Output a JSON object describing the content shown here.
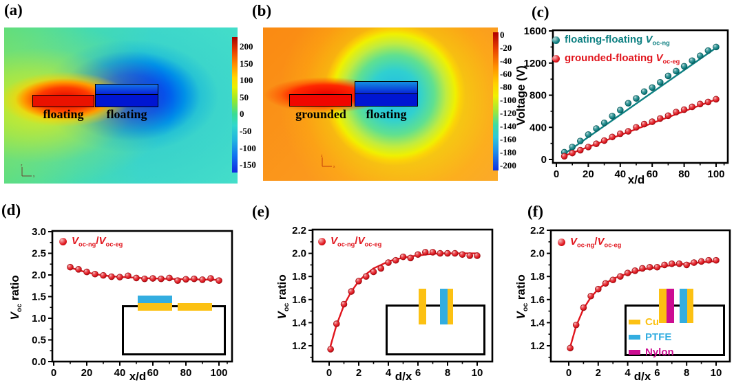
{
  "panel_a": {
    "label": "(a)",
    "left_electrode": "floating",
    "right_electrode": "floating",
    "colorbar_ticks": [
      "200",
      "150",
      "100",
      "50",
      "0",
      "-50",
      "-100",
      "-150"
    ],
    "axis_glyph": {
      "v": "z",
      "h": "x"
    }
  },
  "panel_b": {
    "label": "(b)",
    "left_electrode": "grounded",
    "right_electrode": "floating",
    "colorbar_ticks": [
      "0",
      "-20",
      "-40",
      "-60",
      "-80",
      "-100",
      "-120",
      "-140",
      "-160",
      "-180",
      "-200"
    ],
    "axis_glyph": {
      "v": "z",
      "h": "x"
    }
  },
  "colors": {
    "teal": "#0e8082",
    "red": "#e1151d",
    "cu_yellow": "#fcc113",
    "ptfe_cyan": "#33ade0",
    "nylon_magenta": "#cc0d92"
  },
  "insets": {
    "d": {
      "description": "planar electrodes: PTFE on Cu (left) and bare Cu (right) on open box"
    },
    "e": {
      "description": "vertical electrodes: bare Cu (left), PTFE on Cu (right) above open box"
    },
    "f": {
      "legend": [
        {
          "label": "Cu",
          "color": "#fcc113"
        },
        {
          "label": "PTFE",
          "color": "#33ade0"
        },
        {
          "label": "Nylon",
          "color": "#cc0d92"
        }
      ]
    }
  },
  "chart_data": [
    {
      "id": "c",
      "panel_label": "(c)",
      "type": "scatter",
      "xlabel": [
        {
          "t": "x/d",
          "s": "plain"
        }
      ],
      "ylabel": [
        {
          "t": "Voltage (V)",
          "s": "plain"
        }
      ],
      "xlim": [
        0,
        107
      ],
      "ylim": [
        0,
        1700
      ],
      "xtick_vals": [
        0,
        20,
        40,
        60,
        80,
        100
      ],
      "xtick_labels": [
        "0",
        "20",
        "40",
        "60",
        "80",
        "100"
      ],
      "xminor": [
        10,
        30,
        50,
        70,
        90,
        105
      ],
      "ytick_vals": [
        0,
        400,
        800,
        1200,
        1600
      ],
      "ytick_labels": [
        "0",
        "400",
        "800",
        "1200",
        "1600"
      ],
      "yminor": [
        200,
        600,
        1000,
        1400
      ],
      "legend_position": "top-left",
      "series": [
        {
          "name": "floating-floating Voc-ng",
          "label_segments": [
            {
              "t": "floating-floating ",
              "s": "plain"
            },
            {
              "t": "V",
              "s": "ivar"
            },
            {
              "t": "oc-ng",
              "s": "sub"
            }
          ],
          "color": "#0e8082",
          "x": [
            5,
            10,
            15,
            20,
            25,
            30,
            35,
            40,
            45,
            50,
            55,
            60,
            65,
            70,
            75,
            80,
            85,
            90,
            95,
            100
          ],
          "y": [
            90,
            155,
            230,
            310,
            385,
            455,
            540,
            615,
            700,
            760,
            845,
            895,
            960,
            1040,
            1100,
            1160,
            1230,
            1290,
            1355,
            1400
          ],
          "fit_x": [
            5,
            100
          ],
          "fit_y": [
            70,
            1390
          ]
        },
        {
          "name": "grounded-floating Voc-eg",
          "label_segments": [
            {
              "t": "grounded-floating ",
              "s": "plain"
            },
            {
              "t": "V",
              "s": "ivar"
            },
            {
              "t": "oc-eg",
              "s": "sub"
            }
          ],
          "color": "#e1151d",
          "x": [
            5,
            10,
            15,
            20,
            25,
            30,
            35,
            40,
            45,
            50,
            55,
            60,
            65,
            70,
            75,
            80,
            85,
            90,
            95,
            100
          ],
          "y": [
            40,
            80,
            115,
            155,
            195,
            235,
            280,
            320,
            350,
            400,
            440,
            470,
            510,
            545,
            590,
            620,
            655,
            690,
            715,
            750
          ],
          "fit_x": [
            5,
            100
          ],
          "fit_y": [
            45,
            748
          ]
        }
      ]
    },
    {
      "id": "d",
      "panel_label": "(d)",
      "type": "scatter",
      "xlabel": [
        {
          "t": "x/d",
          "s": "plain"
        }
      ],
      "ylabel": [
        {
          "t": "V",
          "s": "ivar"
        },
        {
          "t": "oc",
          "s": "sub"
        },
        {
          "t": " ratio",
          "s": "plain"
        }
      ],
      "xlim": [
        0,
        108
      ],
      "ylim": [
        0,
        3.0
      ],
      "xtick_vals": [
        0,
        20,
        40,
        60,
        80,
        100
      ],
      "xtick_labels": [
        "0",
        "20",
        "40",
        "60",
        "80",
        "100"
      ],
      "xminor": [
        10,
        30,
        50,
        70,
        90,
        105
      ],
      "ytick_vals": [
        0,
        0.5,
        1,
        1.5,
        2,
        2.5,
        3
      ],
      "ytick_labels": [
        "0.0",
        "0.5",
        "1.0",
        "1.5",
        "2.0",
        "2.5",
        "3.0"
      ],
      "yminor": [
        0.25,
        0.75,
        1.25,
        1.75,
        2.25,
        2.75
      ],
      "legend_position": "top-left",
      "series": [
        {
          "name": "Voc-ng/Voc-eg",
          "label_segments": [
            {
              "t": "V",
              "s": "ivar"
            },
            {
              "t": "oc-ng",
              "s": "sub"
            },
            {
              "t": "/",
              "s": "plain"
            },
            {
              "t": "V",
              "s": "ivar"
            },
            {
              "t": "oc-eg",
              "s": "sub"
            }
          ],
          "color": "#e1151d",
          "x": [
            10,
            15,
            20,
            25,
            30,
            35,
            40,
            45,
            50,
            55,
            60,
            65,
            70,
            75,
            80,
            85,
            90,
            95,
            100
          ],
          "y": [
            2.18,
            2.13,
            2.07,
            2.02,
            1.99,
            1.96,
            1.95,
            1.98,
            1.93,
            1.91,
            1.92,
            1.91,
            1.93,
            1.87,
            1.9,
            1.91,
            1.89,
            1.92,
            1.87
          ],
          "fit_x": [
            10,
            15,
            20,
            25,
            30,
            35,
            40,
            45,
            50,
            55,
            60,
            65,
            70,
            75,
            80,
            85,
            90,
            95,
            100
          ],
          "fit_y": [
            2.17,
            2.11,
            2.06,
            2.02,
            1.99,
            1.97,
            1.955,
            1.945,
            1.935,
            1.925,
            1.92,
            1.915,
            1.91,
            1.905,
            1.9,
            1.897,
            1.894,
            1.891,
            1.888
          ]
        }
      ]
    },
    {
      "id": "e",
      "panel_label": "(e)",
      "type": "scatter",
      "xlabel": [
        {
          "t": "d/x",
          "s": "plain"
        }
      ],
      "ylabel": [
        {
          "t": "V",
          "s": "ivar"
        },
        {
          "t": "oc",
          "s": "sub"
        },
        {
          "t": " ratio",
          "s": "plain"
        }
      ],
      "xlim": [
        -1,
        11
      ],
      "ylim": [
        1.06,
        2.2
      ],
      "xtick_vals": [
        0,
        2,
        4,
        6,
        8,
        10
      ],
      "xtick_labels": [
        "0",
        "2",
        "4",
        "6",
        "8",
        "10"
      ],
      "xminor": [
        1,
        3,
        5,
        7,
        9
      ],
      "ytick_vals": [
        1.2,
        1.4,
        1.6,
        1.8,
        2.0,
        2.2
      ],
      "ytick_labels": [
        "1.2",
        "1.4",
        "1.6",
        "1.8",
        "2.0",
        "2.2"
      ],
      "yminor": [
        1.1,
        1.3,
        1.5,
        1.7,
        1.9,
        2.1
      ],
      "legend_position": "top-left",
      "series": [
        {
          "name": "Voc-ng/Voc-eg",
          "label_segments": [
            {
              "t": "V",
              "s": "ivar"
            },
            {
              "t": "oc-ng",
              "s": "sub"
            },
            {
              "t": "/",
              "s": "plain"
            },
            {
              "t": "V",
              "s": "ivar"
            },
            {
              "t": "oc-eg",
              "s": "sub"
            }
          ],
          "color": "#e1151d",
          "x": [
            0.1,
            0.5,
            1,
            1.5,
            2,
            2.5,
            3,
            3.5,
            4,
            4.5,
            5,
            5.5,
            6,
            6.5,
            7,
            7.5,
            8,
            8.5,
            9,
            9.5,
            10
          ],
          "y": [
            1.17,
            1.39,
            1.56,
            1.67,
            1.76,
            1.8,
            1.84,
            1.87,
            1.92,
            1.94,
            1.97,
            1.96,
            1.99,
            2.01,
            2.01,
            2.0,
            2.0,
            2.0,
            1.99,
            1.98,
            1.98
          ],
          "fit_x": [
            0.1,
            0.5,
            1,
            1.5,
            2,
            2.5,
            3,
            3.5,
            4,
            4.5,
            5,
            5.5,
            6,
            6.5,
            7,
            7.5,
            8,
            8.5,
            9,
            9.5,
            10
          ],
          "fit_y": [
            1.2,
            1.38,
            1.55,
            1.67,
            1.76,
            1.82,
            1.87,
            1.9,
            1.93,
            1.95,
            1.96,
            1.975,
            1.98,
            1.99,
            1.995,
            2.0,
            2.0,
            2.0,
            2.0,
            2.0,
            2.0
          ]
        }
      ]
    },
    {
      "id": "f",
      "panel_label": "(f)",
      "type": "scatter",
      "xlabel": [
        {
          "t": "d/x",
          "s": "plain"
        }
      ],
      "ylabel": [
        {
          "t": "V",
          "s": "ivar"
        },
        {
          "t": "oc",
          "s": "sub"
        },
        {
          "t": " ratio",
          "s": "plain"
        }
      ],
      "xlim": [
        -1,
        11
      ],
      "ylim": [
        1.06,
        2.2
      ],
      "xtick_vals": [
        0,
        2,
        4,
        6,
        8,
        10
      ],
      "xtick_labels": [
        "0",
        "2",
        "4",
        "6",
        "8",
        "10"
      ],
      "xminor": [
        1,
        3,
        5,
        7,
        9
      ],
      "ytick_vals": [
        1.2,
        1.4,
        1.6,
        1.8,
        2.0,
        2.2
      ],
      "ytick_labels": [
        "1.2",
        "1.4",
        "1.6",
        "1.8",
        "2.0",
        "2.2"
      ],
      "yminor": [
        1.1,
        1.3,
        1.5,
        1.7,
        1.9,
        2.1
      ],
      "legend_position": "top-left",
      "series": [
        {
          "name": "Voc-ng/Voc-eg",
          "label_segments": [
            {
              "t": "V",
              "s": "ivar"
            },
            {
              "t": "oc-ng",
              "s": "sub"
            },
            {
              "t": "/",
              "s": "plain"
            },
            {
              "t": "V",
              "s": "ivar"
            },
            {
              "t": "oc-eg",
              "s": "sub"
            }
          ],
          "color": "#e1151d",
          "x": [
            0.1,
            0.5,
            1,
            1.5,
            2,
            2.5,
            3,
            3.5,
            4,
            4.5,
            5,
            5.5,
            6,
            6.5,
            7,
            7.5,
            8,
            8.5,
            9,
            9.5,
            10
          ],
          "y": [
            1.18,
            1.38,
            1.53,
            1.63,
            1.69,
            1.74,
            1.77,
            1.8,
            1.83,
            1.85,
            1.87,
            1.88,
            1.88,
            1.9,
            1.91,
            1.91,
            1.9,
            1.92,
            1.93,
            1.94,
            1.94
          ],
          "fit_x": [
            0.1,
            0.5,
            1,
            1.5,
            2,
            2.5,
            3,
            3.5,
            4,
            4.5,
            5,
            5.5,
            6,
            6.5,
            7,
            7.5,
            8,
            8.5,
            9,
            9.5,
            10
          ],
          "fit_y": [
            1.19,
            1.37,
            1.52,
            1.62,
            1.69,
            1.74,
            1.78,
            1.805,
            1.825,
            1.845,
            1.858,
            1.87,
            1.88,
            1.89,
            1.897,
            1.904,
            1.91,
            1.916,
            1.922,
            1.928,
            1.933
          ]
        }
      ]
    }
  ]
}
